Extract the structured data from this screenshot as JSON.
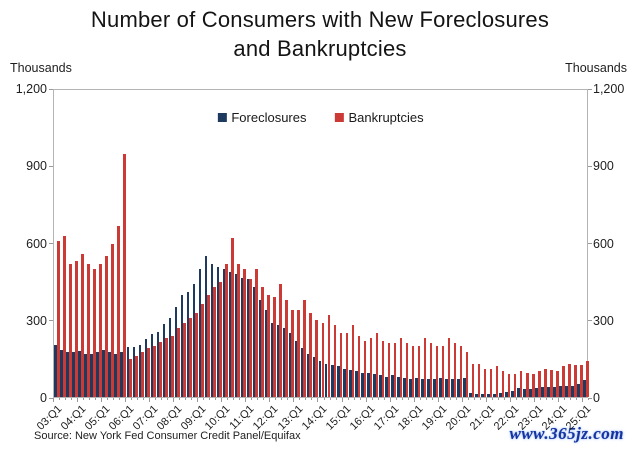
{
  "title": {
    "line1": "Number of Consumers with New Foreclosures",
    "line2": "and Bankruptcies"
  },
  "axis_unit_left": "Thousands",
  "axis_unit_right": "Thousands",
  "legend": [
    {
      "label": "Foreclosures",
      "color": "#1f3a5f"
    },
    {
      "label": "Bankruptcies",
      "color": "#cb3a34"
    }
  ],
  "source": "Source: New York Fed Consumer Credit Panel/Equifax",
  "watermark": "www.365jz.com",
  "chart_data": {
    "type": "bar",
    "title": "Number of Consumers with New Foreclosures and Bankruptcies",
    "xlabel": "",
    "ylabel": "Thousands",
    "ylim": [
      0,
      1200
    ],
    "grid": false,
    "legend_position": "top-center-inside",
    "yticks": [
      {
        "value": 0,
        "label": "0"
      },
      {
        "value": 300,
        "label": "300"
      },
      {
        "value": 600,
        "label": "600"
      },
      {
        "value": 900,
        "label": "900"
      },
      {
        "value": 1200,
        "label": "1,200"
      }
    ],
    "xtick_every": 4,
    "xtick_labels": [
      "03:Q1",
      "04:Q1",
      "05:Q1",
      "06:Q1",
      "07:Q1",
      "08:Q1",
      "09:Q1",
      "10:Q1",
      "11:Q1",
      "12:Q1",
      "13:Q1",
      "14:Q1",
      "15:Q1",
      "16:Q1",
      "17:Q1",
      "18:Q1",
      "19:Q1",
      "20:Q1",
      "21:Q1",
      "22:Q1",
      "23:Q1",
      "24:Q1",
      "25:Q1"
    ],
    "series": [
      {
        "name": "Foreclosures",
        "color": "#1f3a5f",
        "values": [
          205,
          185,
          175,
          175,
          180,
          170,
          170,
          175,
          185,
          175,
          170,
          175,
          195,
          195,
          205,
          225,
          245,
          255,
          285,
          310,
          350,
          400,
          410,
          440,
          500,
          550,
          520,
          510,
          500,
          490,
          480,
          465,
          460,
          430,
          380,
          340,
          290,
          280,
          270,
          250,
          220,
          190,
          170,
          155,
          140,
          130,
          125,
          120,
          110,
          105,
          100,
          95,
          95,
          90,
          85,
          80,
          85,
          80,
          75,
          70,
          75,
          70,
          70,
          70,
          75,
          70,
          70,
          70,
          75,
          15,
          10,
          10,
          10,
          10,
          15,
          20,
          25,
          35,
          30,
          30,
          35,
          40,
          40,
          40,
          45,
          45,
          45,
          50,
          65
        ]
      },
      {
        "name": "Bankruptcies",
        "color": "#cb3a34",
        "values": [
          610,
          630,
          520,
          530,
          560,
          520,
          500,
          520,
          550,
          600,
          670,
          950,
          150,
          160,
          175,
          190,
          200,
          215,
          230,
          240,
          270,
          290,
          310,
          330,
          365,
          400,
          430,
          450,
          520,
          620,
          520,
          500,
          460,
          500,
          430,
          400,
          390,
          440,
          380,
          340,
          340,
          380,
          330,
          300,
          290,
          320,
          280,
          250,
          250,
          280,
          240,
          220,
          230,
          250,
          220,
          210,
          210,
          230,
          210,
          200,
          200,
          230,
          210,
          200,
          200,
          230,
          210,
          200,
          175,
          130,
          130,
          110,
          110,
          120,
          100,
          90,
          90,
          100,
          95,
          90,
          100,
          110,
          105,
          100,
          120,
          130,
          125,
          125,
          140
        ]
      }
    ]
  }
}
